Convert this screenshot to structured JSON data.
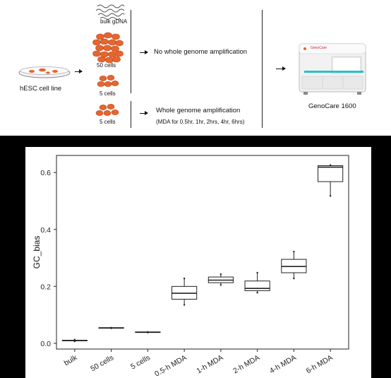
{
  "workflow": {
    "cell_line_label": "hESC cell line",
    "samples": {
      "bulk_label": "bulk gDNA",
      "cells50_label": "50 cells",
      "cells5_label": "5 cells",
      "cells5_mda_label": "5 cells"
    },
    "no_wga_label": "No whole genome amplification",
    "wga_label": "Whole genome amplification",
    "wga_detail": "(MDA for 0.5hr, 1hr, 2hrs, 4hr, 6hrs)",
    "instrument_label": "GenoCare 1600",
    "instrument_brand": "GenoCare"
  },
  "chart_data": {
    "type": "boxplot",
    "ylabel": "GC_bias",
    "ylim": [
      -0.02,
      0.66
    ],
    "yticks": [
      0.0,
      0.2,
      0.4,
      0.6
    ],
    "ytick_labels": [
      "0.0",
      "0.2",
      "0.4",
      "0.6"
    ],
    "categories": [
      "bulk",
      "50 cells",
      "5 cells",
      "0.5-h MDA",
      "1-h MDA",
      "2-h MDA",
      "4-h MDA",
      "6-h MDA"
    ],
    "boxes": [
      {
        "min": 0.007,
        "q1": 0.009,
        "median": 0.01,
        "q3": 0.011,
        "max": 0.013
      },
      {
        "min": 0.053,
        "q1": 0.053,
        "median": 0.054,
        "q3": 0.055,
        "max": 0.055
      },
      {
        "min": 0.038,
        "q1": 0.038,
        "median": 0.039,
        "q3": 0.04,
        "max": 0.04
      },
      {
        "min": 0.135,
        "q1": 0.155,
        "median": 0.176,
        "q3": 0.2,
        "max": 0.228
      },
      {
        "min": 0.205,
        "q1": 0.213,
        "median": 0.222,
        "q3": 0.233,
        "max": 0.243
      },
      {
        "min": 0.178,
        "q1": 0.185,
        "median": 0.193,
        "q3": 0.219,
        "max": 0.248
      },
      {
        "min": 0.228,
        "q1": 0.248,
        "median": 0.27,
        "q3": 0.295,
        "max": 0.322
      },
      {
        "min": 0.518,
        "q1": 0.568,
        "median": 0.619,
        "q3": 0.624,
        "max": 0.626
      }
    ],
    "colors": {
      "box_fill": "#ffffff",
      "box_stroke": "#222222",
      "axis": "#222222"
    }
  }
}
